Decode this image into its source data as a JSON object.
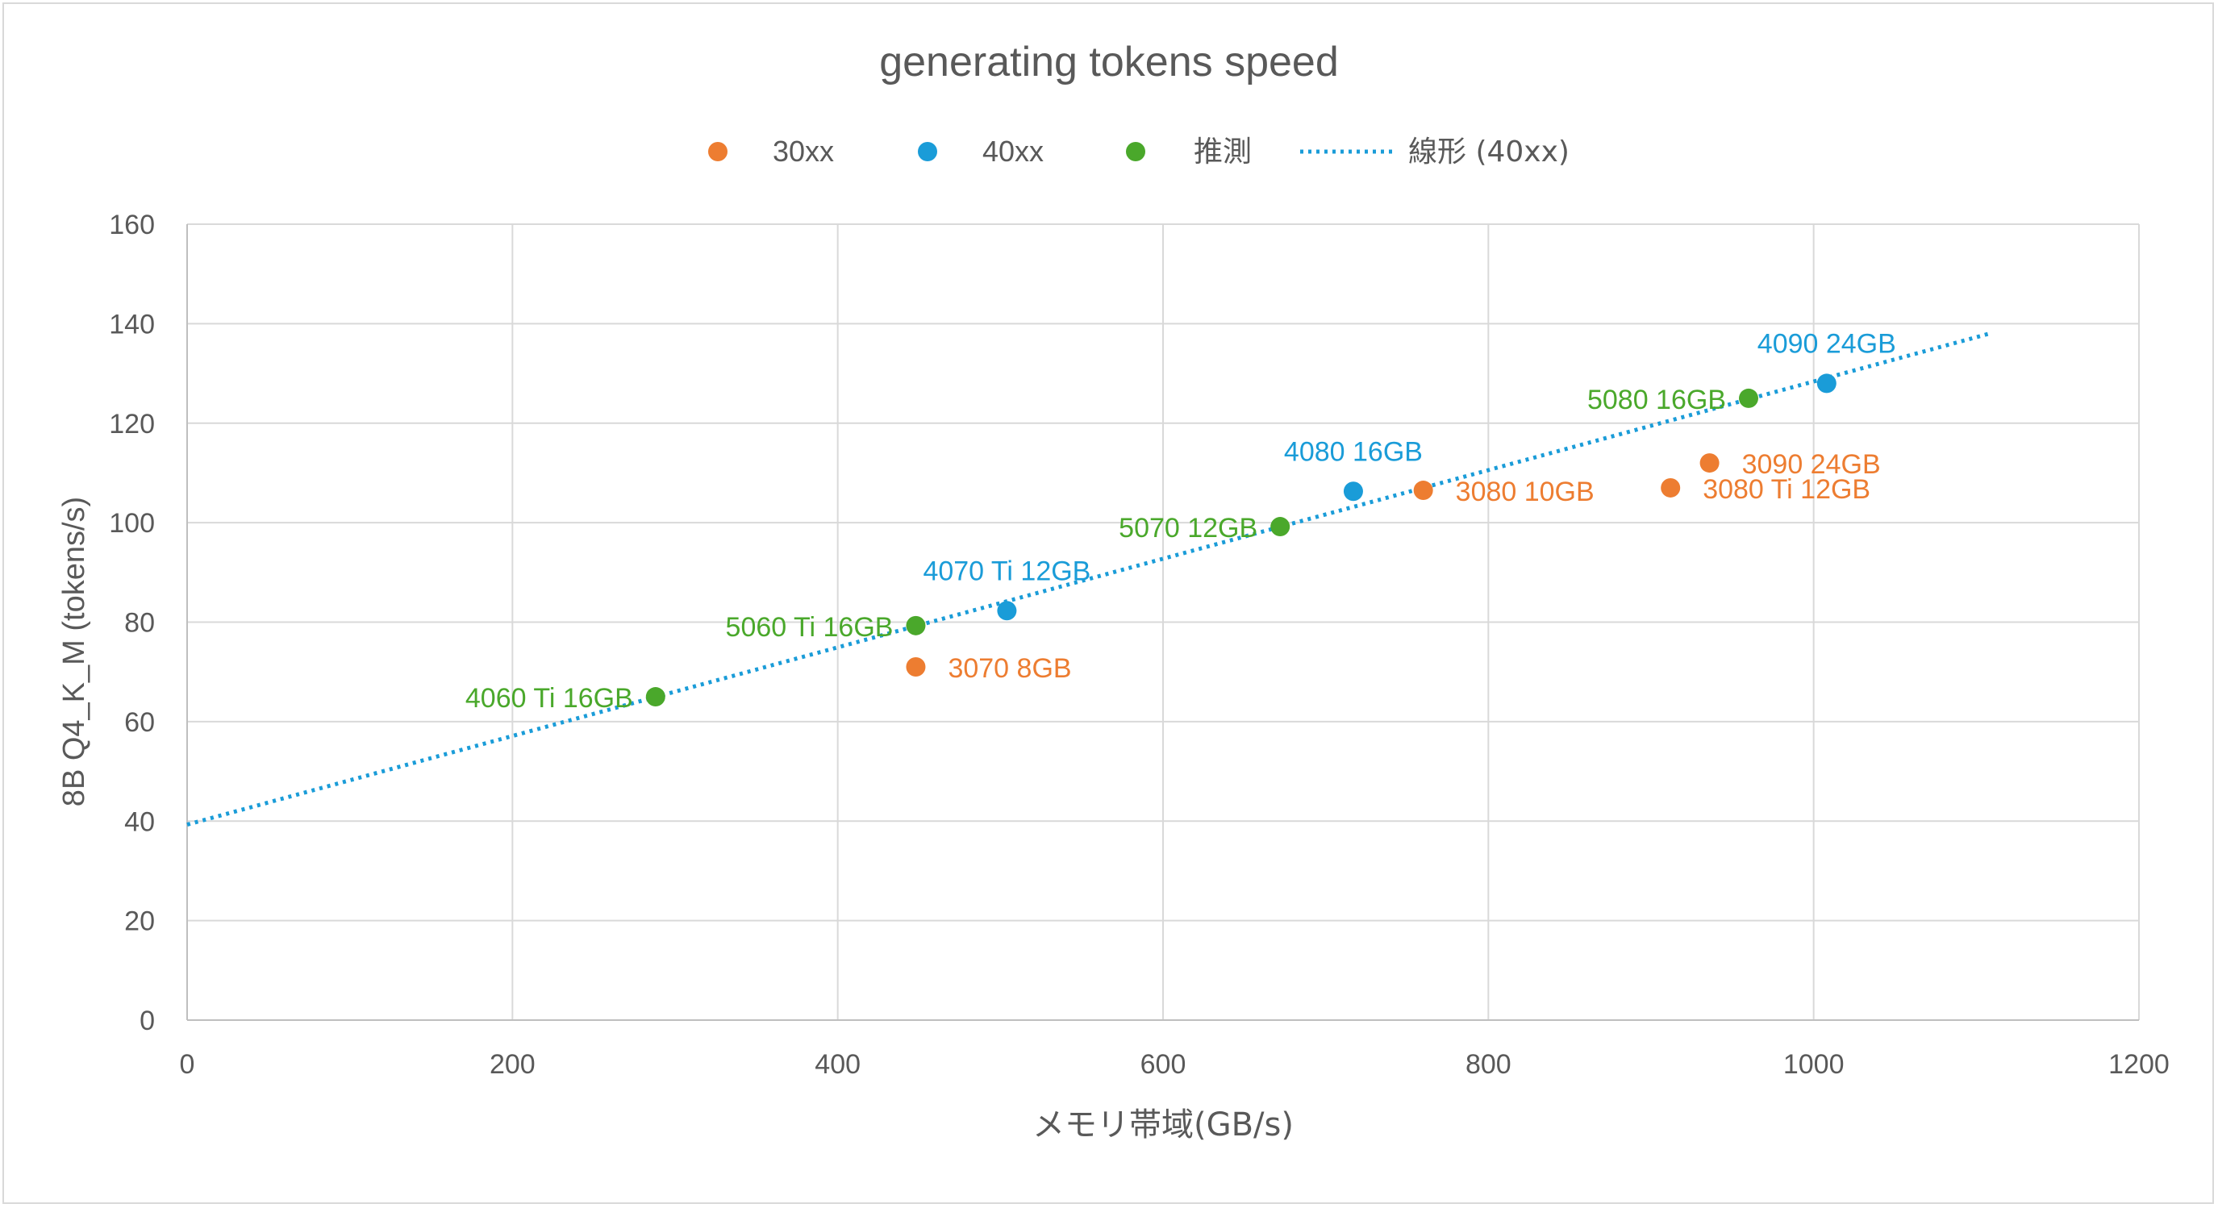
{
  "chart_data": {
    "type": "scatter",
    "title": "generating tokens speed",
    "xlabel": "メモリ帯域(GB/s)",
    "ylabel": "8B Q4_K_M (tokens/s)",
    "xlim": [
      0,
      1200
    ],
    "ylim": [
      0,
      160
    ],
    "x_ticks": [
      0,
      200,
      400,
      600,
      800,
      1000,
      1200
    ],
    "y_ticks": [
      0,
      20,
      40,
      60,
      80,
      100,
      120,
      140,
      160
    ],
    "grid": true,
    "legend_position": "top",
    "series": [
      {
        "name": "30xx",
        "color": "#ed7d31",
        "points": [
          {
            "x": 448,
            "y": 71,
            "label": "3070 8GB"
          },
          {
            "x": 760,
            "y": 106.5,
            "label": "3080 10GB"
          },
          {
            "x": 912,
            "y": 107,
            "label": "3080 Ti 12GB"
          },
          {
            "x": 936,
            "y": 112,
            "label": "3090 24GB"
          }
        ]
      },
      {
        "name": "40xx",
        "color": "#1a9cd8",
        "points": [
          {
            "x": 504,
            "y": 82.3,
            "label": "4070 Ti 12GB"
          },
          {
            "x": 717,
            "y": 106.3,
            "label": "4080 16GB"
          },
          {
            "x": 1008,
            "y": 128,
            "label": "4090 24GB"
          }
        ]
      },
      {
        "name": "推測",
        "color": "#4aa82b",
        "points": [
          {
            "x": 288,
            "y": 65,
            "label": "4060 Ti 16GB"
          },
          {
            "x": 448,
            "y": 79.3,
            "label": "5060 Ti 16GB"
          },
          {
            "x": 672,
            "y": 99.2,
            "label": "5070 12GB"
          },
          {
            "x": 960,
            "y": 125,
            "label": "5080 16GB"
          }
        ]
      }
    ],
    "trendline": {
      "name": "線形 (40xx)",
      "color": "#1a9cd8",
      "style": "dotted",
      "x_start": 0,
      "y_start": 39.3,
      "x_end": 1108,
      "y_end": 138
    }
  }
}
